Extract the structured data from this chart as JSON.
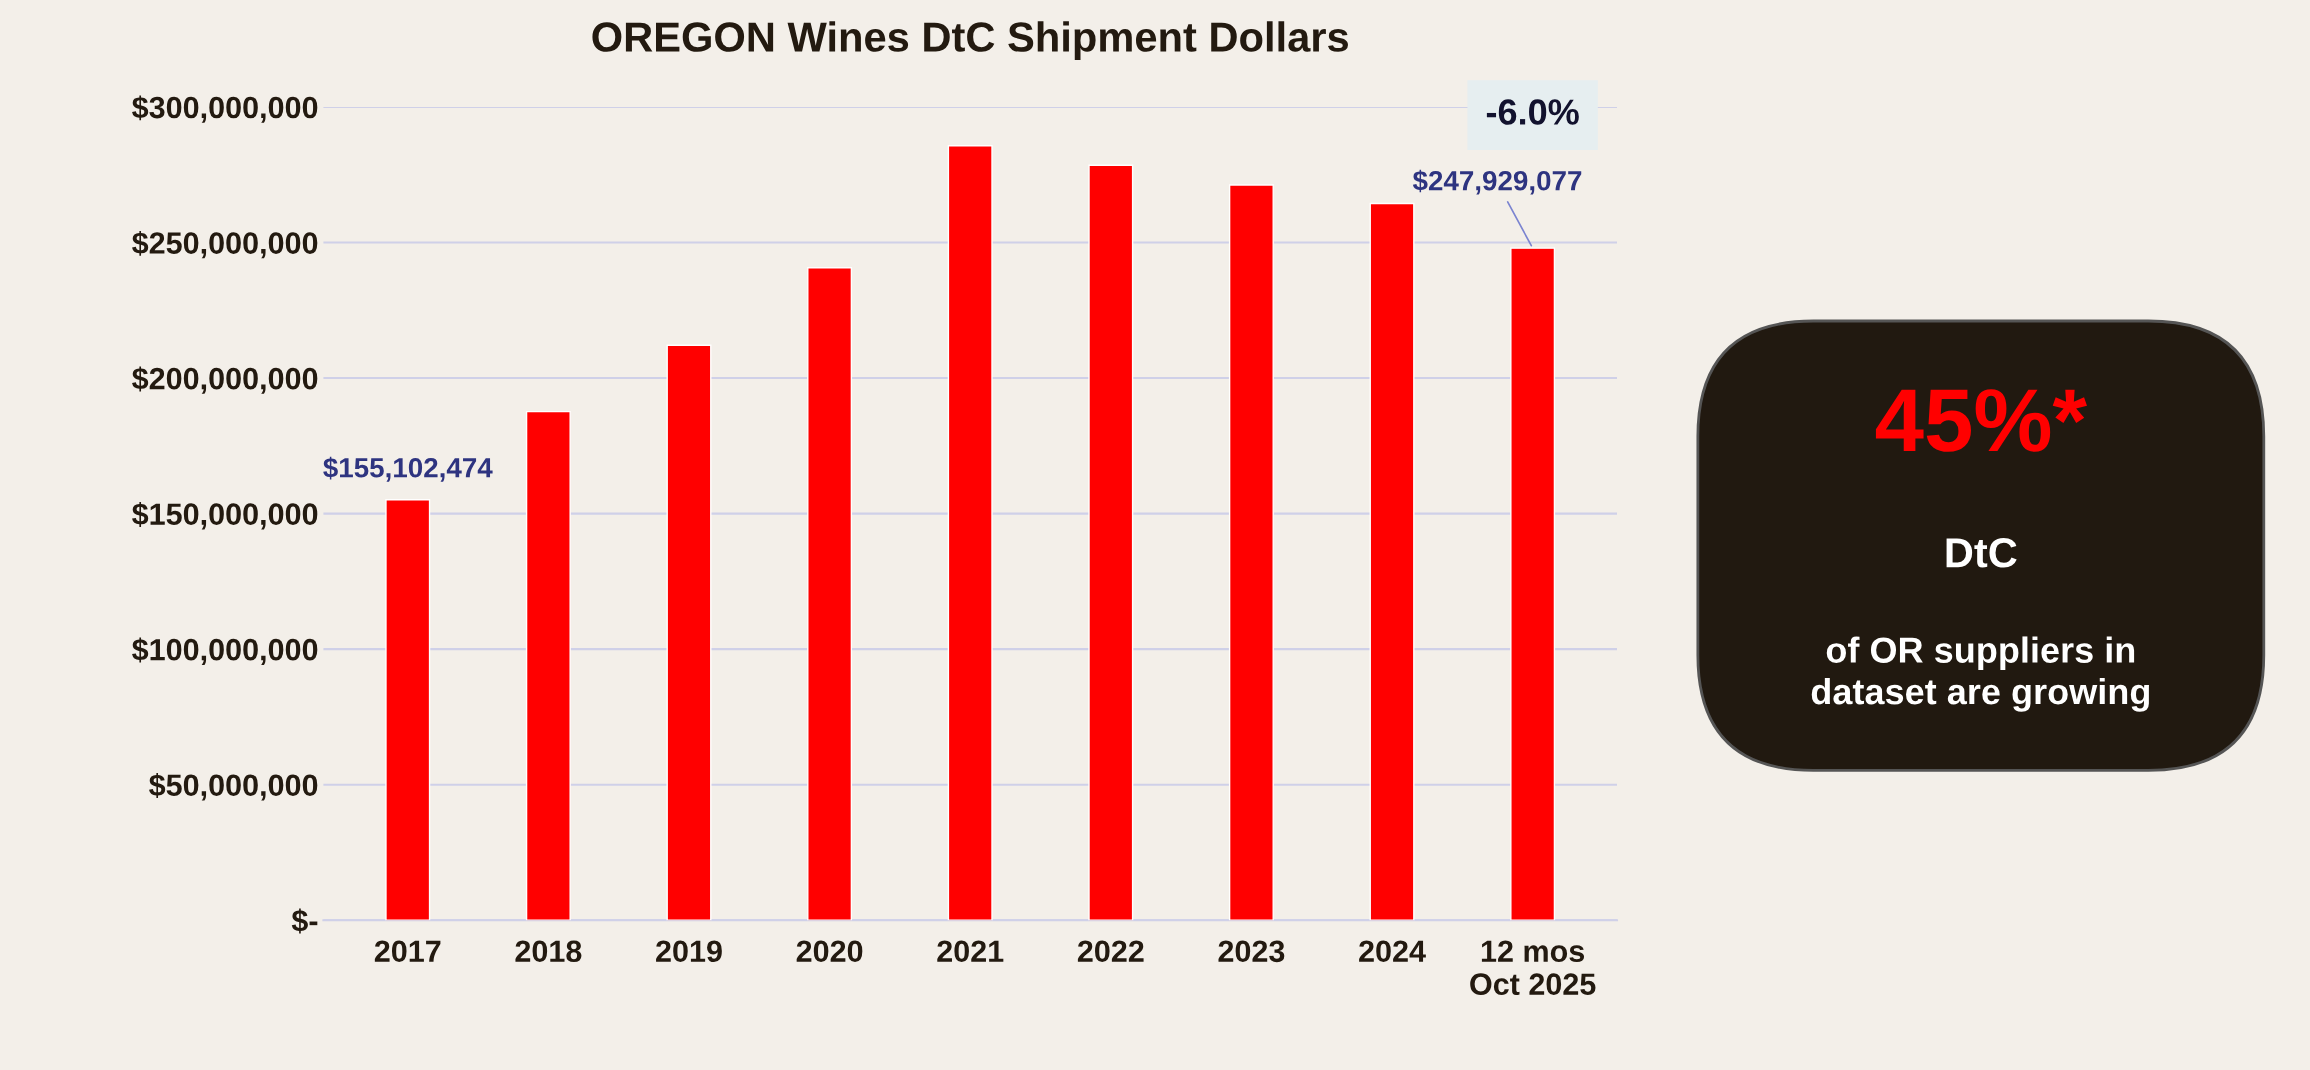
{
  "chart_data": {
    "type": "bar",
    "title": "OREGON Wines DtC Shipment Dollars",
    "categories": [
      "2017",
      "2018",
      "2019",
      "2020",
      "2021",
      "2022",
      "2023",
      "2024",
      "12 mos\nOct 2025"
    ],
    "values": [
      155102474,
      187600000,
      212100000,
      240700000,
      285700000,
      278500000,
      271200000,
      264400000,
      247929077
    ],
    "value_labels": [
      "$155,102,474",
      null,
      null,
      null,
      null,
      null,
      null,
      null,
      "$247,929,077"
    ],
    "color": "#ff0000",
    "ylim": [
      0,
      300000000
    ],
    "yticks": [
      {
        "value": 0,
        "label": "$-"
      },
      {
        "value": 50000000,
        "label": "$50,000,000"
      },
      {
        "value": 100000000,
        "label": "$100,000,000"
      },
      {
        "value": 150000000,
        "label": "$150,000,000"
      },
      {
        "value": 200000000,
        "label": "$200,000,000"
      },
      {
        "value": 250000000,
        "label": "$250,000,000"
      },
      {
        "value": 300000000,
        "label": "$300,000,000"
      }
    ],
    "grid": "y",
    "annotations": [
      "-6.0%",
      "45%*",
      "DtC",
      "of OR suppliers in\ndataset are growing"
    ]
  }
}
